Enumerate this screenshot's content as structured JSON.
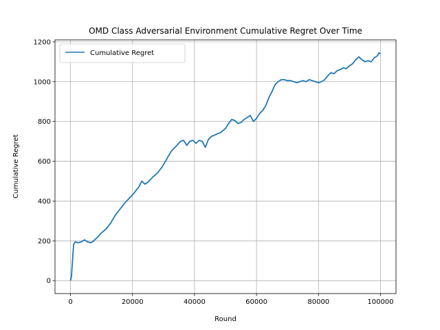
{
  "chart_data": {
    "type": "line",
    "title": "OMD Class Adversarial Environment Cumulative Regret Over Time",
    "xlabel": "Round",
    "ylabel": "Cumulative Regret",
    "xlim": [
      -5000,
      105000
    ],
    "ylim": [
      -65,
      1210
    ],
    "xticks": [
      0,
      20000,
      40000,
      60000,
      80000,
      100000
    ],
    "xtick_labels": [
      "0",
      "20000",
      "40000",
      "60000",
      "80000",
      "100000"
    ],
    "yticks": [
      0,
      200,
      400,
      600,
      800,
      1000,
      1200
    ],
    "ytick_labels": [
      "0",
      "200",
      "400",
      "600",
      "800",
      "1000",
      "1200"
    ],
    "grid": true,
    "legend": {
      "position": "upper-left",
      "entries": [
        "Cumulative Regret"
      ]
    },
    "series": [
      {
        "name": "Cumulative Regret",
        "color": "#1f77b4",
        "x": [
          0,
          300,
          600,
          1000,
          1500,
          2500,
          3500,
          4500,
          5500,
          6500,
          7500,
          8500,
          10000,
          11500,
          13000,
          14500,
          16000,
          17500,
          19000,
          20500,
          22000,
          23000,
          24000,
          25000,
          26500,
          28000,
          29500,
          31000,
          32500,
          34000,
          35500,
          36500,
          37500,
          38500,
          39500,
          40500,
          41500,
          42500,
          43500,
          44500,
          45500,
          47000,
          48500,
          50000,
          51000,
          52000,
          53000,
          54000,
          55000,
          56000,
          57000,
          58000,
          59000,
          60000,
          61000,
          62000,
          63000,
          64000,
          65000,
          66000,
          67000,
          68000,
          69000,
          70000,
          71000,
          72000,
          73000,
          74000,
          75000,
          76000,
          77000,
          78000,
          79000,
          80000,
          81000,
          82000,
          83000,
          84000,
          85000,
          86000,
          87000,
          88000,
          89000,
          90000,
          91000,
          92000,
          93000,
          94000,
          95000,
          96000,
          97000,
          98000,
          99000,
          99500,
          100000
        ],
        "y": [
          0,
          20,
          90,
          180,
          195,
          190,
          195,
          205,
          195,
          190,
          200,
          215,
          240,
          260,
          290,
          330,
          360,
          390,
          415,
          440,
          470,
          500,
          485,
          495,
          520,
          540,
          570,
          610,
          650,
          675,
          700,
          705,
          680,
          700,
          705,
          690,
          705,
          700,
          670,
          710,
          725,
          735,
          745,
          765,
          790,
          810,
          805,
          790,
          795,
          810,
          820,
          830,
          800,
          815,
          840,
          855,
          880,
          920,
          950,
          985,
          1000,
          1010,
          1010,
          1005,
          1005,
          1000,
          995,
          1000,
          1005,
          1000,
          1010,
          1005,
          1000,
          995,
          1000,
          1010,
          1030,
          1045,
          1040,
          1055,
          1060,
          1070,
          1065,
          1080,
          1090,
          1110,
          1125,
          1110,
          1100,
          1105,
          1100,
          1120,
          1130,
          1145,
          1140
        ]
      }
    ]
  }
}
